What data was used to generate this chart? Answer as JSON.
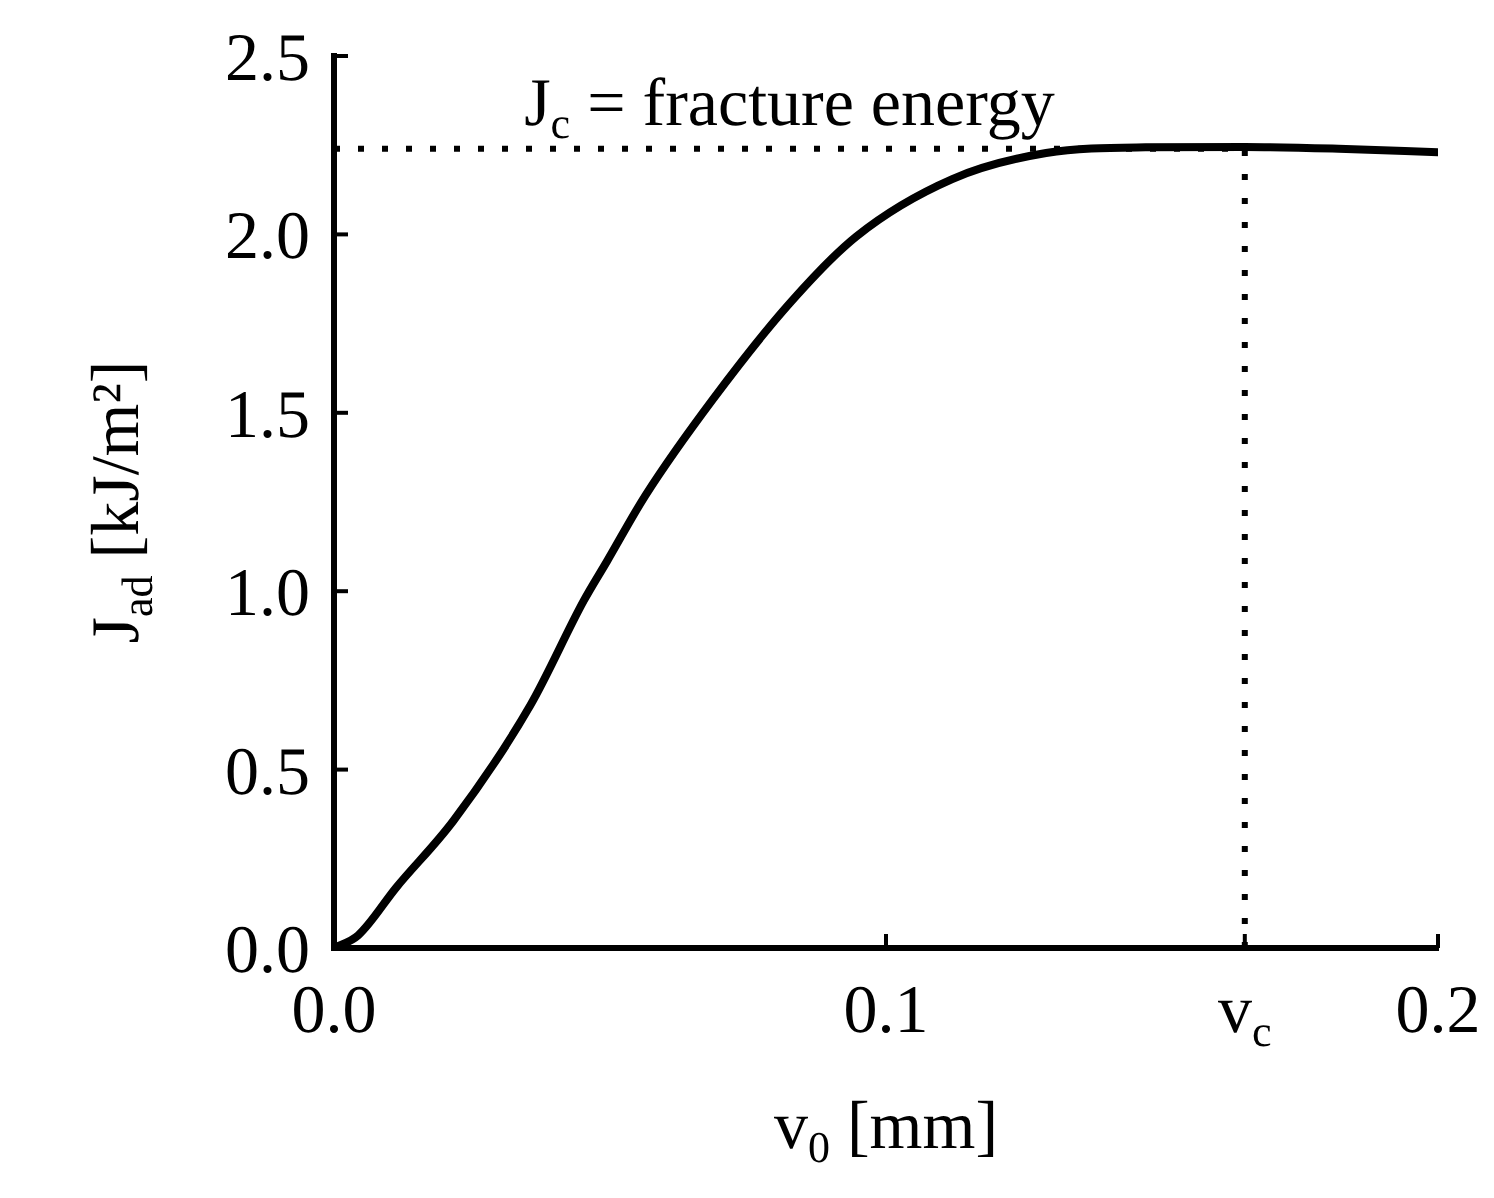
{
  "chart_data": {
    "type": "line",
    "xlabel": "v$_{0}$ [mm]",
    "ylabel": "J$_{ad}$ [kJ/m²]",
    "xlim": [
      0,
      0.2
    ],
    "ylim": [
      0,
      2.5
    ],
    "xticks": [
      {
        "value": 0,
        "label": "0.0"
      },
      0.1,
      {
        "value": 0.165,
        "label": "v$_{c}$"
      },
      0.2
    ],
    "yticks": [
      {
        "value": 0,
        "label": "0.0"
      },
      0.5,
      {
        "value": 1,
        "label": "1.0"
      },
      1.5,
      {
        "value": 2,
        "label": "2.0"
      },
      2.5
    ],
    "series": [
      {
        "color": "#000000",
        "x": [
          0,
          0.0044,
          0.0113,
          0.0217,
          0.0356,
          0.0452,
          0.0495,
          0.0564,
          0.0686,
          0.0825,
          0.0946,
          0.112,
          0.129,
          0.147,
          0.165,
          0.182,
          0.2
        ],
        "values": [
          0,
          0.036,
          0.17,
          0.358,
          0.681,
          0.972,
          1.085,
          1.268,
          1.537,
          1.806,
          1.994,
          2.155,
          2.228,
          2.244,
          2.245,
          2.24,
          2.23
        ]
      }
    ],
    "ref_lines": [
      {
        "axis": "y",
        "value": 2.24,
        "label": "J$_{c}$ = fracture energy",
        "line_style": "dotted",
        "color": "#000000"
      },
      {
        "axis": "x",
        "value": 0.165,
        "line_style": "dotted",
        "color": "#000000"
      }
    ],
    "grid": false,
    "legend": false,
    "marker": "none",
    "line_style": "solid"
  }
}
